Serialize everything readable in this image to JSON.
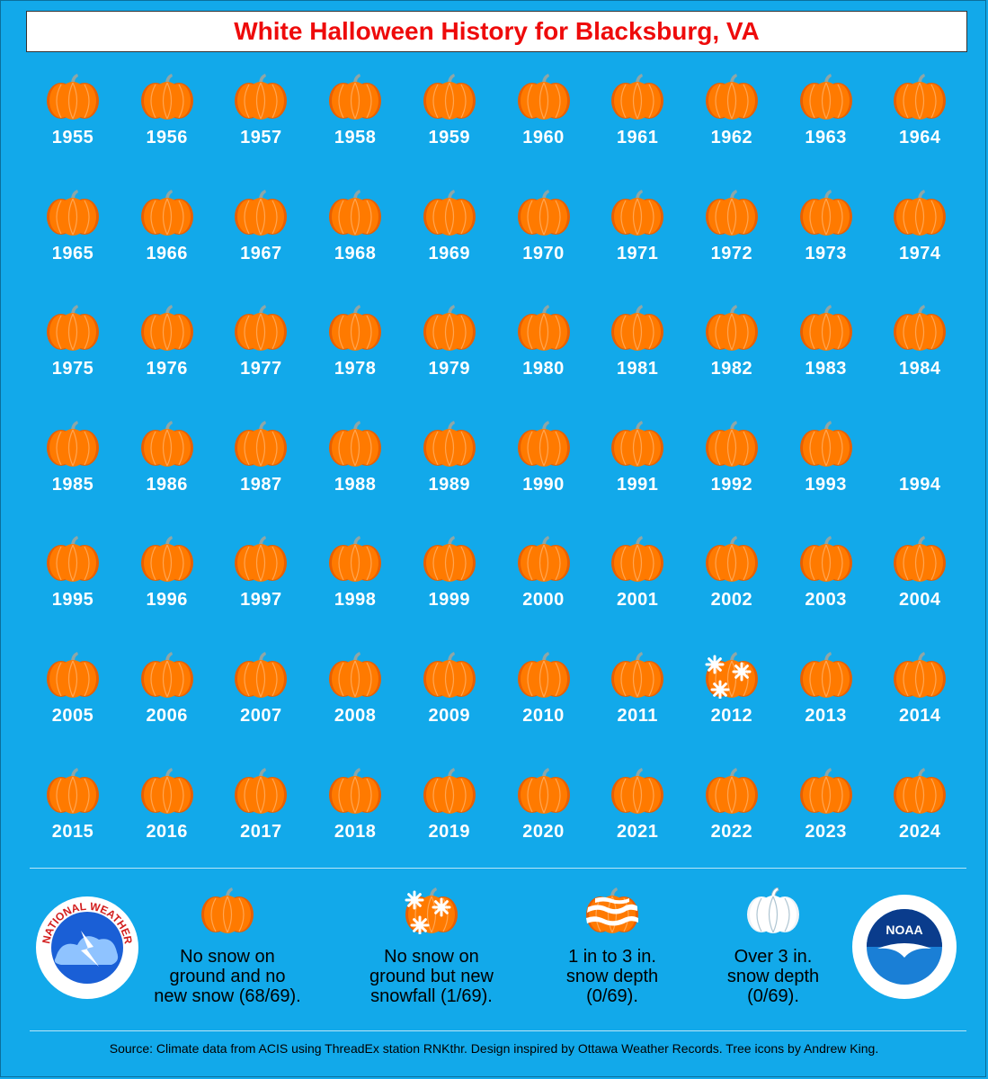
{
  "title": "White Halloween History for Blacksburg, VA",
  "colors": {
    "background": "#12a9ea",
    "title_text": "#ee0b0b",
    "pumpkin": "#ff7a00",
    "pumpkin_shade": "#e85f00",
    "stem": "#8fa6a6"
  },
  "years": [
    {
      "year": "1955",
      "icon": "pumpkin-icon"
    },
    {
      "year": "1956",
      "icon": "pumpkin-icon"
    },
    {
      "year": "1957",
      "icon": "pumpkin-icon"
    },
    {
      "year": "1958",
      "icon": "pumpkin-icon"
    },
    {
      "year": "1959",
      "icon": "pumpkin-icon"
    },
    {
      "year": "1960",
      "icon": "pumpkin-icon"
    },
    {
      "year": "1961",
      "icon": "pumpkin-icon"
    },
    {
      "year": "1962",
      "icon": "pumpkin-icon"
    },
    {
      "year": "1963",
      "icon": "pumpkin-icon"
    },
    {
      "year": "1964",
      "icon": "pumpkin-icon"
    },
    {
      "year": "1965",
      "icon": "pumpkin-icon"
    },
    {
      "year": "1966",
      "icon": "pumpkin-icon"
    },
    {
      "year": "1967",
      "icon": "pumpkin-icon"
    },
    {
      "year": "1968",
      "icon": "pumpkin-icon"
    },
    {
      "year": "1969",
      "icon": "pumpkin-icon"
    },
    {
      "year": "1970",
      "icon": "pumpkin-icon"
    },
    {
      "year": "1971",
      "icon": "pumpkin-icon"
    },
    {
      "year": "1972",
      "icon": "pumpkin-icon"
    },
    {
      "year": "1973",
      "icon": "pumpkin-icon"
    },
    {
      "year": "1974",
      "icon": "pumpkin-icon"
    },
    {
      "year": "1975",
      "icon": "pumpkin-icon"
    },
    {
      "year": "1976",
      "icon": "pumpkin-icon"
    },
    {
      "year": "1977",
      "icon": "pumpkin-icon"
    },
    {
      "year": "1978",
      "icon": "pumpkin-icon"
    },
    {
      "year": "1979",
      "icon": "pumpkin-icon"
    },
    {
      "year": "1980",
      "icon": "pumpkin-icon"
    },
    {
      "year": "1981",
      "icon": "pumpkin-icon"
    },
    {
      "year": "1982",
      "icon": "pumpkin-icon"
    },
    {
      "year": "1983",
      "icon": "pumpkin-icon"
    },
    {
      "year": "1984",
      "icon": "pumpkin-icon"
    },
    {
      "year": "1985",
      "icon": "pumpkin-icon"
    },
    {
      "year": "1986",
      "icon": "pumpkin-icon"
    },
    {
      "year": "1987",
      "icon": "pumpkin-icon"
    },
    {
      "year": "1988",
      "icon": "pumpkin-icon"
    },
    {
      "year": "1989",
      "icon": "pumpkin-icon"
    },
    {
      "year": "1990",
      "icon": "pumpkin-icon"
    },
    {
      "year": "1991",
      "icon": "pumpkin-icon"
    },
    {
      "year": "1992",
      "icon": "pumpkin-icon"
    },
    {
      "year": "1993",
      "icon": "pumpkin-icon"
    },
    {
      "year": "1994",
      "icon": "none"
    },
    {
      "year": "1995",
      "icon": "pumpkin-icon"
    },
    {
      "year": "1996",
      "icon": "pumpkin-icon"
    },
    {
      "year": "1997",
      "icon": "pumpkin-icon"
    },
    {
      "year": "1998",
      "icon": "pumpkin-icon"
    },
    {
      "year": "1999",
      "icon": "pumpkin-icon"
    },
    {
      "year": "2000",
      "icon": "pumpkin-icon"
    },
    {
      "year": "2001",
      "icon": "pumpkin-icon"
    },
    {
      "year": "2002",
      "icon": "pumpkin-icon"
    },
    {
      "year": "2003",
      "icon": "pumpkin-icon"
    },
    {
      "year": "2004",
      "icon": "pumpkin-icon"
    },
    {
      "year": "2005",
      "icon": "pumpkin-icon"
    },
    {
      "year": "2006",
      "icon": "pumpkin-icon"
    },
    {
      "year": "2007",
      "icon": "pumpkin-icon"
    },
    {
      "year": "2008",
      "icon": "pumpkin-icon"
    },
    {
      "year": "2009",
      "icon": "pumpkin-icon"
    },
    {
      "year": "2010",
      "icon": "pumpkin-icon"
    },
    {
      "year": "2011",
      "icon": "pumpkin-icon"
    },
    {
      "year": "2012",
      "icon": "snowflake-pumpkin-icon"
    },
    {
      "year": "2013",
      "icon": "pumpkin-icon"
    },
    {
      "year": "2014",
      "icon": "pumpkin-icon"
    },
    {
      "year": "2015",
      "icon": "pumpkin-icon"
    },
    {
      "year": "2016",
      "icon": "pumpkin-icon"
    },
    {
      "year": "2017",
      "icon": "pumpkin-icon"
    },
    {
      "year": "2018",
      "icon": "pumpkin-icon"
    },
    {
      "year": "2019",
      "icon": "pumpkin-icon"
    },
    {
      "year": "2020",
      "icon": "pumpkin-icon"
    },
    {
      "year": "2021",
      "icon": "pumpkin-icon"
    },
    {
      "year": "2022",
      "icon": "pumpkin-icon"
    },
    {
      "year": "2023",
      "icon": "pumpkin-icon"
    },
    {
      "year": "2024",
      "icon": "pumpkin-icon"
    }
  ],
  "legend": [
    {
      "icon": "pumpkin-icon",
      "text": "No snow on\nground and no\nnew snow (68/69)."
    },
    {
      "icon": "snowflake-pumpkin-icon",
      "text": "No snow on\nground but new\nsnowfall (1/69)."
    },
    {
      "icon": "striped-snow-pumpkin-icon",
      "text": "1 in to 3 in.\nsnow depth\n(0/69)."
    },
    {
      "icon": "white-pumpkin-icon",
      "text": "Over 3 in.\nsnow depth\n(0/69)."
    }
  ],
  "logos": {
    "nws": {
      "icon": "nws-logo-icon",
      "text": "NATIONAL WEATHER SERVICE"
    },
    "noaa": {
      "icon": "noaa-logo-icon",
      "text": "NOAA"
    }
  },
  "source": "Source: Climate data from ACIS using ThreadEx station RNKthr. Design inspired by Ottawa Weather Records. Tree icons by Andrew King."
}
